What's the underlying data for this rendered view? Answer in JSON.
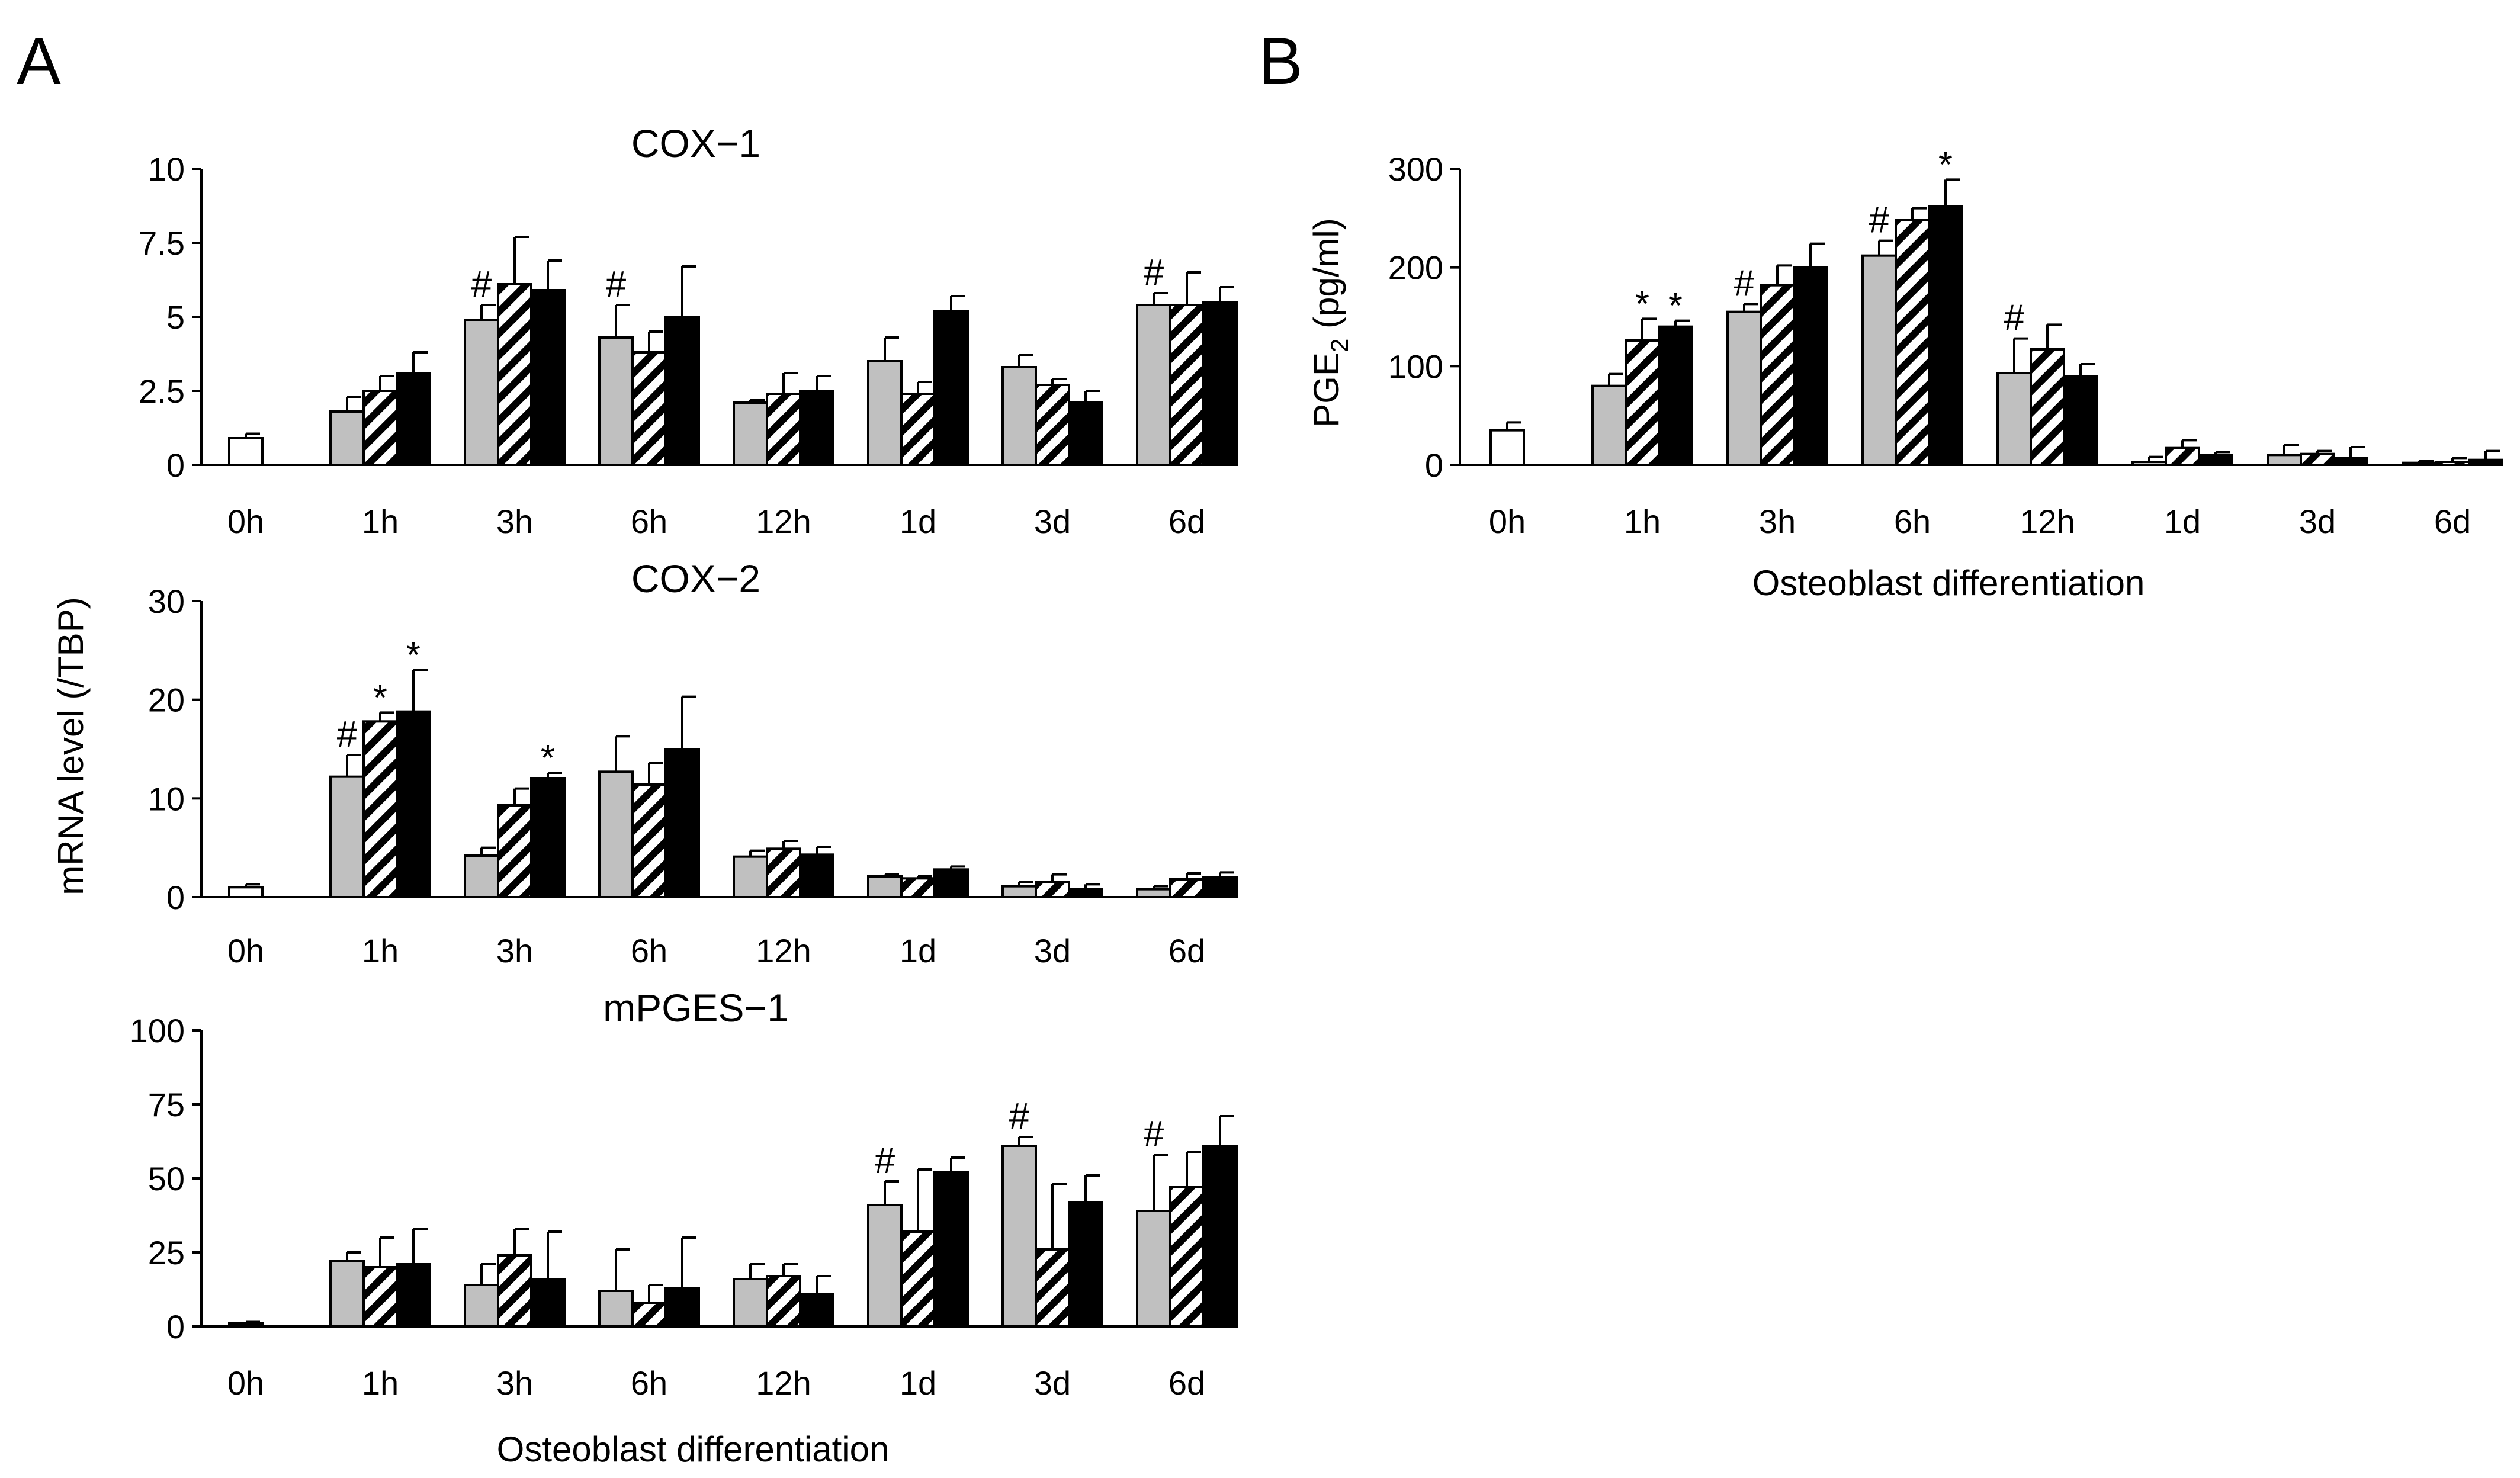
{
  "panels": {
    "a": "A",
    "b": "B"
  },
  "shared": {
    "xlabel": "Osteoblast differentiation",
    "ylabel_mrna": "mRNA level (/TBP)",
    "ylabel_pge_main": "PGE",
    "ylabel_pge_sub": "2",
    "ylabel_pge_unit": " (pg/ml)"
  },
  "chart_data": [
    {
      "id": "cox1",
      "type": "bar",
      "title": "COX−1",
      "categories": [
        "0h",
        "1h",
        "3h",
        "6h",
        "12h",
        "1d",
        "3d",
        "6d"
      ],
      "ylim": [
        0,
        10
      ],
      "yticks": [
        0,
        2.5,
        5,
        7.5,
        10
      ],
      "yticklabels": [
        "0",
        "2.5",
        "5",
        "7.5",
        "10"
      ],
      "series": [
        {
          "name": "control (white)",
          "values": [
            0.9,
            null,
            null,
            null,
            null,
            null,
            null,
            null
          ],
          "errors": [
            0.15,
            null,
            null,
            null,
            null,
            null,
            null,
            null
          ]
        },
        {
          "name": "gray",
          "values": [
            null,
            1.8,
            4.9,
            4.3,
            2.1,
            3.5,
            3.3,
            5.4
          ],
          "errors": [
            null,
            0.5,
            0.5,
            1.1,
            0.1,
            0.8,
            0.4,
            0.4
          ]
        },
        {
          "name": "hatched",
          "values": [
            null,
            2.5,
            6.1,
            3.8,
            2.4,
            2.4,
            2.7,
            5.4
          ],
          "errors": [
            null,
            0.5,
            1.6,
            0.7,
            0.7,
            0.4,
            0.2,
            1.1
          ]
        },
        {
          "name": "black",
          "values": [
            null,
            3.1,
            5.9,
            5.0,
            2.5,
            5.2,
            2.1,
            5.5
          ],
          "errors": [
            null,
            0.7,
            1.0,
            1.7,
            0.5,
            0.5,
            0.4,
            0.5
          ]
        }
      ],
      "annotations": [
        {
          "category": "3h",
          "series": "gray",
          "text": "#"
        },
        {
          "category": "6h",
          "series": "gray",
          "text": "#"
        },
        {
          "category": "6d",
          "series": "gray",
          "text": "#"
        }
      ]
    },
    {
      "id": "cox2",
      "type": "bar",
      "title": "COX−2",
      "categories": [
        "0h",
        "1h",
        "3h",
        "6h",
        "12h",
        "1d",
        "3d",
        "6d"
      ],
      "ylim": [
        0,
        30
      ],
      "yticks": [
        0,
        10,
        20,
        30
      ],
      "yticklabels": [
        "0",
        "10",
        "20",
        "30"
      ],
      "series": [
        {
          "name": "control (white)",
          "values": [
            1.0,
            null,
            null,
            null,
            null,
            null,
            null,
            null
          ],
          "errors": [
            0.3,
            null,
            null,
            null,
            null,
            null,
            null,
            null
          ]
        },
        {
          "name": "gray",
          "values": [
            null,
            12.2,
            4.2,
            12.7,
            4.1,
            2.1,
            1.1,
            0.8
          ],
          "errors": [
            null,
            2.2,
            0.8,
            3.6,
            0.6,
            0.2,
            0.4,
            0.3
          ]
        },
        {
          "name": "hatched",
          "values": [
            null,
            17.8,
            9.3,
            11.4,
            4.9,
            1.9,
            1.5,
            1.8
          ],
          "errors": [
            null,
            0.9,
            1.7,
            2.2,
            0.8,
            0.2,
            0.8,
            0.6
          ]
        },
        {
          "name": "black",
          "values": [
            null,
            18.8,
            12.0,
            15.0,
            4.3,
            2.8,
            0.8,
            2.0
          ],
          "errors": [
            null,
            4.2,
            0.6,
            5.3,
            0.8,
            0.3,
            0.5,
            0.5
          ]
        }
      ],
      "annotations": [
        {
          "category": "1h",
          "series": "gray",
          "text": "#"
        },
        {
          "category": "1h",
          "series": "hatched",
          "text": "*"
        },
        {
          "category": "1h",
          "series": "black",
          "text": "*"
        },
        {
          "category": "3h",
          "series": "black",
          "text": "*"
        }
      ]
    },
    {
      "id": "mpges1",
      "type": "bar",
      "title": "mPGES−1",
      "categories": [
        "0h",
        "1h",
        "3h",
        "6h",
        "12h",
        "1d",
        "3d",
        "6d"
      ],
      "ylim": [
        0,
        100
      ],
      "yticks": [
        0,
        25,
        50,
        75,
        100
      ],
      "yticklabels": [
        "0",
        "25",
        "50",
        "75",
        "100"
      ],
      "series": [
        {
          "name": "control (white)",
          "values": [
            1.0,
            null,
            null,
            null,
            null,
            null,
            null,
            null
          ],
          "errors": [
            0.5,
            null,
            null,
            null,
            null,
            null,
            null,
            null
          ]
        },
        {
          "name": "gray",
          "values": [
            null,
            22,
            14,
            12,
            16,
            41,
            61,
            39
          ],
          "errors": [
            null,
            3,
            7,
            14,
            5,
            8,
            3,
            19
          ]
        },
        {
          "name": "hatched",
          "values": [
            null,
            20,
            24,
            8,
            17,
            32,
            26,
            47
          ],
          "errors": [
            null,
            10,
            9,
            6,
            4,
            21,
            22,
            12
          ]
        },
        {
          "name": "black",
          "values": [
            null,
            21,
            16,
            13,
            11,
            52,
            42,
            61
          ],
          "errors": [
            null,
            12,
            16,
            17,
            6,
            5,
            9,
            10
          ]
        }
      ],
      "annotations": [
        {
          "category": "1d",
          "series": "gray",
          "text": "#"
        },
        {
          "category": "3d",
          "series": "gray",
          "text": "#"
        },
        {
          "category": "6d",
          "series": "gray",
          "text": "#"
        }
      ]
    },
    {
      "id": "pge2",
      "type": "bar",
      "title": "",
      "categories": [
        "0h",
        "1h",
        "3h",
        "6h",
        "12h",
        "1d",
        "3d",
        "6d"
      ],
      "ylim": [
        0,
        300
      ],
      "yticks": [
        0,
        100,
        200,
        300
      ],
      "yticklabels": [
        "0",
        "100",
        "200",
        "300"
      ],
      "series": [
        {
          "name": "control (white)",
          "values": [
            35,
            null,
            null,
            null,
            null,
            null,
            null,
            null
          ],
          "errors": [
            8,
            null,
            null,
            null,
            null,
            null,
            null,
            null
          ]
        },
        {
          "name": "gray",
          "values": [
            null,
            80,
            155,
            212,
            93,
            3,
            10,
            2
          ],
          "errors": [
            null,
            12,
            8,
            15,
            35,
            5,
            10,
            2
          ]
        },
        {
          "name": "hatched",
          "values": [
            null,
            126,
            182,
            248,
            117,
            17,
            11,
            3
          ],
          "errors": [
            null,
            22,
            20,
            12,
            25,
            8,
            3,
            4
          ]
        },
        {
          "name": "black",
          "values": [
            null,
            140,
            200,
            262,
            90,
            10,
            7,
            5
          ],
          "errors": [
            null,
            6,
            24,
            27,
            12,
            3,
            11,
            9
          ]
        }
      ],
      "annotations": [
        {
          "category": "1h",
          "series": "hatched",
          "text": "*"
        },
        {
          "category": "1h",
          "series": "black",
          "text": "*"
        },
        {
          "category": "3h",
          "series": "gray",
          "text": "#"
        },
        {
          "category": "6h",
          "series": "gray",
          "text": "#"
        },
        {
          "category": "6h",
          "series": "black",
          "text": "*"
        },
        {
          "category": "12h",
          "series": "gray",
          "text": "#"
        }
      ]
    }
  ]
}
